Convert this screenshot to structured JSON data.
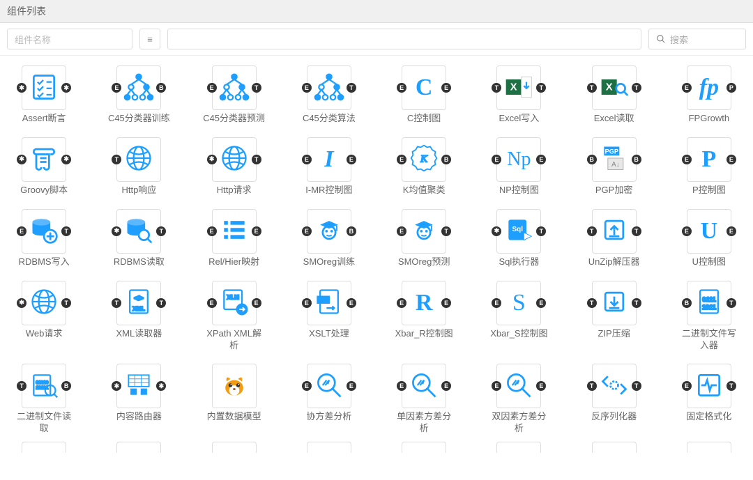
{
  "header": {
    "title": "组件列表"
  },
  "toolbar": {
    "name_placeholder": "组件名称",
    "menu_icon": "≡",
    "search_placeholder": "搜索"
  },
  "port_glyphs": {
    "E": "E",
    "T": "T",
    "B": "B",
    "star": "✱",
    "P": "P"
  },
  "colors": {
    "brand": "#1e9fff",
    "excel_green": "#1d7044",
    "orange": "#f39c12"
  },
  "items": [
    {
      "label": "Assert断言",
      "pl": "star",
      "pr": "star",
      "icon": "checklist"
    },
    {
      "label": "C45分类器训练",
      "pl": "E",
      "pr": "B",
      "icon": "tree"
    },
    {
      "label": "C45分类器预测",
      "pl": "E",
      "pr": "T",
      "icon": "tree"
    },
    {
      "label": "C45分类算法",
      "pl": "E",
      "pr": "T",
      "icon": "tree"
    },
    {
      "label": "C控制图",
      "pl": "E",
      "pr": "E",
      "icon": "C"
    },
    {
      "label": "Excel写入",
      "pl": "T",
      "pr": "T",
      "icon": "excel-down"
    },
    {
      "label": "Excel读取",
      "pl": "T",
      "pr": "T",
      "icon": "excel-search"
    },
    {
      "label": "FPGrowth",
      "pl": "E",
      "pr": "P",
      "icon": "fp"
    },
    {
      "label": "Groovy脚本",
      "pl": "star",
      "pr": "star",
      "icon": "scroll"
    },
    {
      "label": "Http响应",
      "pl": "T",
      "pr": "",
      "icon": "globe"
    },
    {
      "label": "Http请求",
      "pl": "star",
      "pr": "T",
      "icon": "globe"
    },
    {
      "label": "I-MR控制图",
      "pl": "E",
      "pr": "E",
      "icon": "I"
    },
    {
      "label": "K均值聚类",
      "pl": "E",
      "pr": "B",
      "icon": "K-badge"
    },
    {
      "label": "NP控制图",
      "pl": "E",
      "pr": "E",
      "icon": "Np"
    },
    {
      "label": "PGP加密",
      "pl": "B",
      "pr": "B",
      "icon": "pgp"
    },
    {
      "label": "P控制图",
      "pl": "E",
      "pr": "E",
      "icon": "P"
    },
    {
      "label": "RDBMS写入",
      "pl": "E",
      "pr": "T",
      "icon": "db-plus"
    },
    {
      "label": "RDBMS读取",
      "pl": "star",
      "pr": "T",
      "icon": "db-search"
    },
    {
      "label": "Rel/Hier映射",
      "pl": "E",
      "pr": "E",
      "icon": "list"
    },
    {
      "label": "SMOreg训练",
      "pl": "E",
      "pr": "B",
      "icon": "grad"
    },
    {
      "label": "SMOreg预测",
      "pl": "E",
      "pr": "T",
      "icon": "grad"
    },
    {
      "label": "Sql执行器",
      "pl": "star",
      "pr": "T",
      "icon": "sql"
    },
    {
      "label": "UnZip解压器",
      "pl": "T",
      "pr": "T",
      "icon": "unzip"
    },
    {
      "label": "U控制图",
      "pl": "E",
      "pr": "E",
      "icon": "U"
    },
    {
      "label": "Web请求",
      "pl": "star",
      "pr": "T",
      "icon": "globe"
    },
    {
      "label": "XML读取器",
      "pl": "T",
      "pr": "T",
      "icon": "xml"
    },
    {
      "label": "XPath XML解析",
      "pl": "E",
      "pr": "E",
      "icon": "xlm"
    },
    {
      "label": "XSLT处理",
      "pl": "E",
      "pr": "E",
      "icon": "xsl"
    },
    {
      "label": "Xbar_R控制图",
      "pl": "E",
      "pr": "E",
      "icon": "R"
    },
    {
      "label": "Xbar_S控制图",
      "pl": "E",
      "pr": "E",
      "icon": "S"
    },
    {
      "label": "ZIP压缩",
      "pl": "T",
      "pr": "T",
      "icon": "zip"
    },
    {
      "label": "二进制文件写入器",
      "pl": "B",
      "pr": "T",
      "icon": "binary"
    },
    {
      "label": "二进制文件读取",
      "pl": "T",
      "pr": "B",
      "icon": "binary-mag"
    },
    {
      "label": "内容路由器",
      "pl": "star",
      "pr": "star",
      "icon": "router"
    },
    {
      "label": "内置数据模型",
      "pl": "",
      "pr": "",
      "icon": "squirrel"
    },
    {
      "label": "协方差分析",
      "pl": "E",
      "pr": "E",
      "icon": "mag-arrow"
    },
    {
      "label": "单因素方差分析",
      "pl": "E",
      "pr": "E",
      "icon": "mag-arrow"
    },
    {
      "label": "双因素方差分析",
      "pl": "E",
      "pr": "E",
      "icon": "mag-arrow"
    },
    {
      "label": "反序列化器",
      "pl": "T",
      "pr": "T",
      "icon": "deser"
    },
    {
      "label": "固定格式化",
      "pl": "E",
      "pr": "T",
      "icon": "pulse"
    }
  ]
}
